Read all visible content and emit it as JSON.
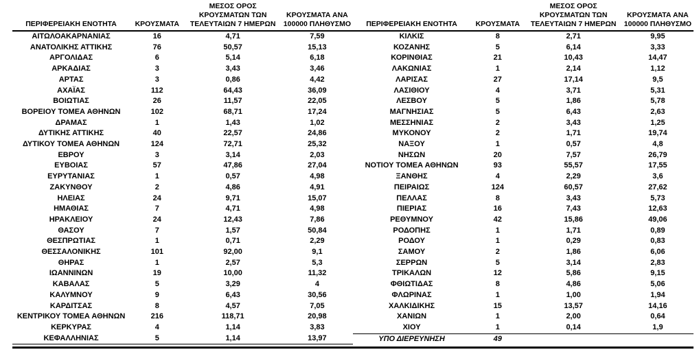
{
  "colors": {
    "text": "#000000",
    "background": "#ffffff",
    "rule": "#000000"
  },
  "table": {
    "headers": {
      "region": "ΠΕΡΙΦΕΡΕΙΑΚΗ ΕΝΟΤΗΤΑ",
      "cases": "ΚΡΟΥΣΜΑΤΑ",
      "avg7day": "ΜΕΣΟΣ ΟΡΟΣ\nΚΡΟΥΣΜΑΤΩΝ ΤΩΝ\nΤΕΛΕΥΤΑΙΩΝ 7 ΗΜΕΡΩΝ",
      "per100k": "ΚΡΟΥΣΜΑΤΑ ΑΝΑ\n100000 ΠΛΗΘΥΣΜΟ"
    },
    "left_rows": [
      [
        "ΑΙΤΩΛΟΑΚΑΡΝΑΝΙΑΣ",
        "16",
        "4,71",
        "7,59"
      ],
      [
        "ΑΝΑΤΟΛΙΚΗΣ ΑΤΤΙΚΗΣ",
        "76",
        "50,57",
        "15,13"
      ],
      [
        "ΑΡΓΟΛΙΔΑΣ",
        "6",
        "5,14",
        "6,18"
      ],
      [
        "ΑΡΚΑΔΙΑΣ",
        "3",
        "3,43",
        "3,46"
      ],
      [
        "ΑΡΤΑΣ",
        "3",
        "0,86",
        "4,42"
      ],
      [
        "ΑΧΑΪΑΣ",
        "112",
        "64,43",
        "36,09"
      ],
      [
        "ΒΟΙΩΤΙΑΣ",
        "26",
        "11,57",
        "22,05"
      ],
      [
        "ΒΟΡΕΙΟΥ ΤΟΜΕΑ ΑΘΗΝΩΝ",
        "102",
        "68,71",
        "17,24"
      ],
      [
        "ΔΡΑΜΑΣ",
        "1",
        "1,43",
        "1,02"
      ],
      [
        "ΔΥΤΙΚΗΣ ΑΤΤΙΚΗΣ",
        "40",
        "22,57",
        "24,86"
      ],
      [
        "ΔΥΤΙΚΟΥ ΤΟΜΕΑ ΑΘΗΝΩΝ",
        "124",
        "72,71",
        "25,32"
      ],
      [
        "ΕΒΡΟΥ",
        "3",
        "3,14",
        "2,03"
      ],
      [
        "ΕΥΒΟΙΑΣ",
        "57",
        "47,86",
        "27,04"
      ],
      [
        "ΕΥΡΥΤΑΝΙΑΣ",
        "1",
        "0,57",
        "4,98"
      ],
      [
        "ΖΑΚΥΝΘΟΥ",
        "2",
        "4,86",
        "4,91"
      ],
      [
        "ΗΛΕΙΑΣ",
        "24",
        "9,71",
        "15,07"
      ],
      [
        "ΗΜΑΘΙΑΣ",
        "7",
        "4,71",
        "4,98"
      ],
      [
        "ΗΡΑΚΛΕΙΟΥ",
        "24",
        "12,43",
        "7,86"
      ],
      [
        "ΘΑΣΟΥ",
        "7",
        "1,57",
        "50,84"
      ],
      [
        "ΘΕΣΠΡΩΤΙΑΣ",
        "1",
        "0,71",
        "2,29"
      ],
      [
        "ΘΕΣΣΑΛΟΝΙΚΗΣ",
        "101",
        "92,00",
        "9,1"
      ],
      [
        "ΘΗΡΑΣ",
        "1",
        "2,57",
        "5,3"
      ],
      [
        "ΙΩΑΝΝΙΝΩΝ",
        "19",
        "10,00",
        "11,32"
      ],
      [
        "ΚΑΒΑΛΑΣ",
        "5",
        "3,29",
        "4"
      ],
      [
        "ΚΑΛΥΜΝΟΥ",
        "9",
        "6,43",
        "30,56"
      ],
      [
        "ΚΑΡΔΙΤΣΑΣ",
        "8",
        "4,57",
        "7,05"
      ],
      [
        "ΚΕΝΤΡΙΚΟΥ ΤΟΜΕΑ ΑΘΗΝΩΝ",
        "216",
        "118,71",
        "20,98"
      ],
      [
        "ΚΕΡΚΥΡΑΣ",
        "4",
        "1,14",
        "3,83"
      ],
      [
        "ΚΕΦΑΛΛΗΝΙΑΣ",
        "5",
        "1,14",
        "13,97"
      ]
    ],
    "right_rows": [
      [
        "ΚΙΛΚΙΣ",
        "8",
        "2,71",
        "9,95"
      ],
      [
        "ΚΟΖΑΝΗΣ",
        "5",
        "6,14",
        "3,33"
      ],
      [
        "ΚΟΡΙΝΘΙΑΣ",
        "21",
        "10,43",
        "14,47"
      ],
      [
        "ΛΑΚΩΝΙΑΣ",
        "1",
        "2,14",
        "1,12"
      ],
      [
        "ΛΑΡΙΣΑΣ",
        "27",
        "17,14",
        "9,5"
      ],
      [
        "ΛΑΣΙΘΙΟΥ",
        "4",
        "3,71",
        "5,31"
      ],
      [
        "ΛΕΣΒΟΥ",
        "5",
        "1,86",
        "5,78"
      ],
      [
        "ΜΑΓΝΗΣΙΑΣ",
        "5",
        "6,43",
        "2,63"
      ],
      [
        "ΜΕΣΣΗΝΙΑΣ",
        "2",
        "3,43",
        "1,25"
      ],
      [
        "ΜΥΚΟΝΟΥ",
        "2",
        "1,71",
        "19,74"
      ],
      [
        "ΝΑΞΟΥ",
        "1",
        "0,57",
        "4,8"
      ],
      [
        "ΝΗΣΩΝ",
        "20",
        "7,57",
        "26,79"
      ],
      [
        "ΝΟΤΙΟΥ ΤΟΜΕΑ ΑΘΗΝΩΝ",
        "93",
        "55,57",
        "17,55"
      ],
      [
        "ΞΑΝΘΗΣ",
        "4",
        "2,29",
        "3,6"
      ],
      [
        "ΠΕΙΡΑΙΩΣ",
        "124",
        "60,57",
        "27,62"
      ],
      [
        "ΠΕΛΛΑΣ",
        "8",
        "3,43",
        "5,73"
      ],
      [
        "ΠΙΕΡΙΑΣ",
        "16",
        "7,43",
        "12,63"
      ],
      [
        "ΡΕΘΥΜΝΟΥ",
        "42",
        "15,86",
        "49,06"
      ],
      [
        "ΡΟΔΟΠΗΣ",
        "1",
        "1,71",
        "0,89"
      ],
      [
        "ΡΟΔΟΥ",
        "1",
        "0,29",
        "0,83"
      ],
      [
        "ΣΑΜΟΥ",
        "2",
        "1,86",
        "6,06"
      ],
      [
        "ΣΕΡΡΩΝ",
        "5",
        "3,14",
        "2,83"
      ],
      [
        "ΤΡΙΚΑΛΩΝ",
        "12",
        "5,86",
        "9,15"
      ],
      [
        "ΦΘΙΩΤΙΔΑΣ",
        "8",
        "4,86",
        "5,06"
      ],
      [
        "ΦΛΩΡΙΝΑΣ",
        "1",
        "1,00",
        "1,94"
      ],
      [
        "ΧΑΛΚΙΔΙΚΗΣ",
        "15",
        "13,57",
        "14,16"
      ],
      [
        "ΧΑΝΙΩΝ",
        "1",
        "2,00",
        "0,64"
      ],
      [
        "ΧΙΟΥ",
        "1",
        "0,14",
        "1,9"
      ]
    ],
    "pending_row": {
      "label": "ΥΠΟ ΔΙΕΡΕΥΝΗΣΗ",
      "cases": "49",
      "avg7day": "",
      "per100k": ""
    }
  }
}
